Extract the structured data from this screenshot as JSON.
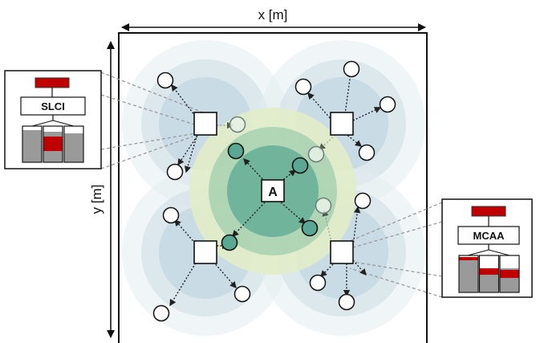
{
  "axes": {
    "x_label": "x [m]",
    "y_label": "y [m]"
  },
  "center_node": {
    "label": "A"
  },
  "insets": [
    {
      "side": "left",
      "title": "SLCI"
    },
    {
      "side": "right",
      "title": "MCAA"
    }
  ],
  "colors": {
    "outer_ring_1": "#e3ecf1",
    "outer_ring_2": "#cddce6",
    "outer_ring_3": "#b8cfdc",
    "green_ring_1": "#e1edc9",
    "green_ring_2": "#a7d1b0",
    "green_ring_3": "#5aa893",
    "bar_gray": "#9a9a9a",
    "bar_red": "#c00000",
    "arrow": "#222222",
    "dashed_link": "#9a9a9a"
  }
}
